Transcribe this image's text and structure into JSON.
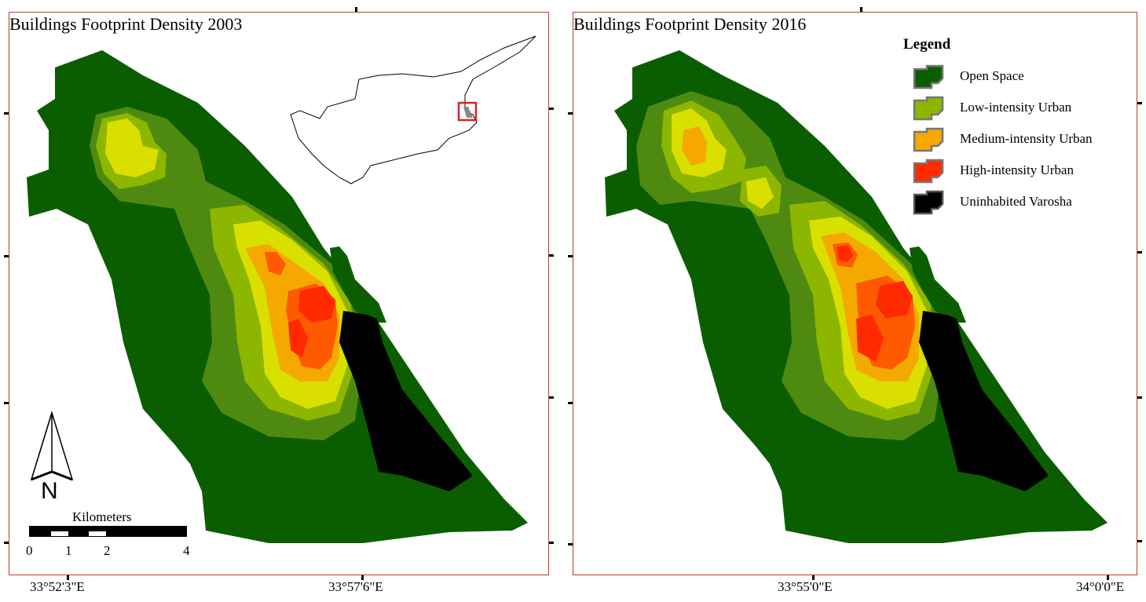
{
  "panels": {
    "left": {
      "title": "Buildings Footprint Density 2003"
    },
    "right": {
      "title": "Buildings Footprint Density 2016"
    }
  },
  "legend": {
    "title": "Legend",
    "items": [
      {
        "label": "Open Space",
        "color": "#0b5e00"
      },
      {
        "label": "Low-intensity Urban",
        "color": "#8db600"
      },
      {
        "label": "Medium-intensity Urban",
        "color": "#f5a800"
      },
      {
        "label": "High-intensity Urban",
        "color": "#ff2a00"
      },
      {
        "label": "Uninhabited Varosha",
        "color": "#000000"
      }
    ]
  },
  "density_colors": [
    "#0b5e00",
    "#4f8a10",
    "#8db600",
    "#d9e000",
    "#f5a800",
    "#ff5a00",
    "#ff2a00"
  ],
  "scale_bar": {
    "title": "Kilometers",
    "ticks": [
      "0",
      "1",
      "2",
      "4"
    ]
  },
  "north_arrow": {
    "label": "N"
  },
  "coordinates": {
    "left": [
      "33°52'3\"E",
      "33°57'6\"E"
    ],
    "right": [
      "33°55'0\"E",
      "34°0'0\"E"
    ]
  }
}
